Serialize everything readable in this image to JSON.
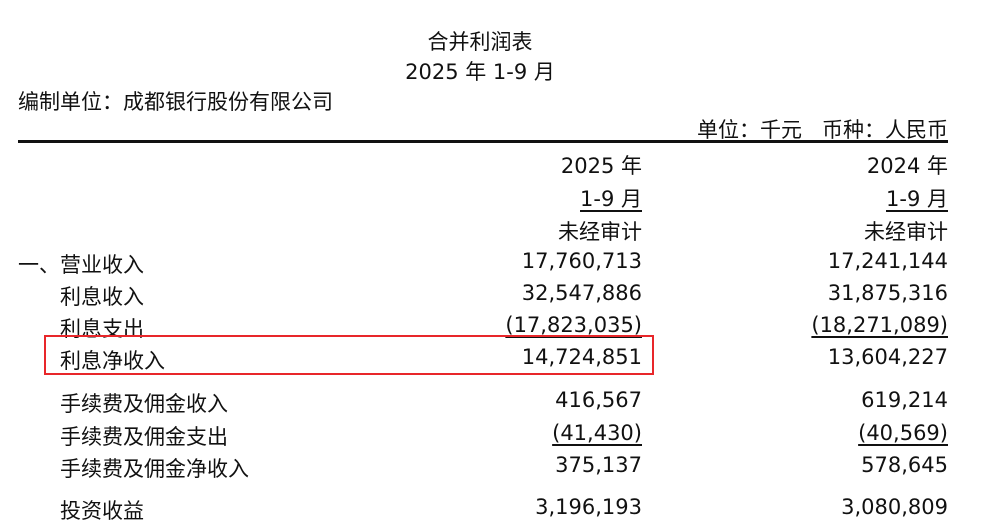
{
  "title": "合并利润表",
  "period": "2025 年 1-9 月",
  "preparer": "编制单位：成都银行股份有限公司",
  "unit": "单位：千元",
  "currency": "币种：人民币",
  "columns": [
    {
      "year": "2025 年",
      "period": "1-9 月",
      "audit": "未经审计"
    },
    {
      "year": "2024 年",
      "period": "1-9 月",
      "audit": "未经审计"
    }
  ],
  "rows": [
    {
      "label": "一、营业收入",
      "v2025": "17,760,713",
      "v2024": "17,241,144"
    },
    {
      "label": "利息收入",
      "v2025": "32,547,886",
      "v2024": "31,875,316"
    },
    {
      "label": "利息支出",
      "v2025": "(17,823,035)",
      "v2024": "(18,271,089)"
    },
    {
      "label": "利息净收入",
      "v2025": "14,724,851",
      "v2024": "13,604,227"
    },
    {
      "label": "手续费及佣金收入",
      "v2025": "416,567",
      "v2024": "619,214"
    },
    {
      "label": "手续费及佣金支出",
      "v2025": "(41,430)",
      "v2024": "(40,569)"
    },
    {
      "label": "手续费及佣金净收入",
      "v2025": "375,137",
      "v2024": "578,645"
    },
    {
      "label": "投资收益",
      "v2025": "3,196,193",
      "v2024": "3,080,809"
    }
  ],
  "highlight_color": "#e8262a"
}
